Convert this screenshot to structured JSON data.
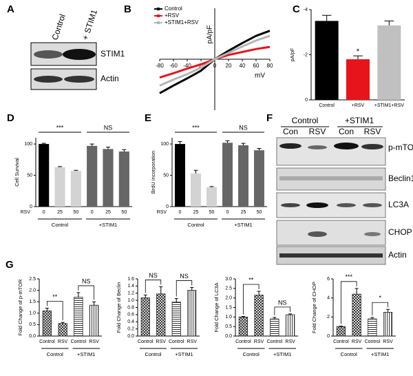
{
  "panels": [
    "A",
    "B",
    "C",
    "D",
    "E",
    "F",
    "G"
  ],
  "blots": [
    {
      "lanes": [
        "Control",
        "+ STIM1"
      ],
      "rows": [
        "STIM1",
        "Actin"
      ]
    },
    {
      "groups": [
        "Control",
        "+STIM1"
      ],
      "lanes": [
        "Con",
        "RSV",
        "Con",
        "RSV"
      ],
      "rows": [
        "p-mTOR",
        "Beclin1",
        "LC3A",
        "CHOP",
        "Actin"
      ]
    }
  ],
  "chart_data": [
    {
      "type": "line",
      "xlabel": "mV",
      "ylabel": "pA/pF",
      "x": [
        -80,
        -60,
        -40,
        -20,
        0,
        20,
        40,
        60,
        80
      ],
      "xlim": [
        -80,
        80
      ],
      "xticks": [
        -80,
        -60,
        -40,
        -20,
        0,
        20,
        40,
        60,
        80
      ],
      "ylim": [
        -1.2,
        1.2
      ],
      "legend": "upper left",
      "series": [
        {
          "name": "Control",
          "color": "#000000",
          "values": [
            -0.8,
            -0.62,
            -0.45,
            -0.27,
            0,
            0.2,
            0.38,
            0.55,
            0.67
          ]
        },
        {
          "name": "+RSV",
          "color": "#e8141b",
          "values": [
            -0.43,
            -0.33,
            -0.22,
            -0.12,
            0,
            0.1,
            0.17,
            0.24,
            0.29
          ]
        },
        {
          "name": "+STIM1+RSV",
          "color": "#b4b4b4",
          "values": [
            -0.62,
            -0.48,
            -0.35,
            -0.2,
            0,
            0.15,
            0.3,
            0.44,
            0.55
          ]
        }
      ]
    },
    {
      "type": "bar",
      "ylabel": "pA/pF",
      "categories": [
        "Control",
        "+RSV",
        "+STIM1+RSV"
      ],
      "values": [
        -3.5,
        -1.8,
        -3.3
      ],
      "errors": [
        0.25,
        0.15,
        0.2
      ],
      "colors": [
        "#000000",
        "#e8141b",
        "#c0c0c0"
      ],
      "ylim": [
        0,
        -4
      ],
      "yticks": [
        0,
        -2,
        -4
      ],
      "annotations": [
        "*"
      ]
    },
    {
      "type": "bar",
      "ylabel": "Cell Survival",
      "xlabel": "RSV",
      "categories": [
        "0",
        "25",
        "50",
        "0",
        "25",
        "50"
      ],
      "groups": [
        "Control",
        "+STIM1"
      ],
      "values": [
        100,
        63,
        57,
        97,
        92,
        88
      ],
      "errors": [
        1,
        1,
        1,
        3,
        3,
        3
      ],
      "colors": [
        "#000000",
        "#d3d3d3",
        "#d3d3d3",
        "#666666",
        "#666666",
        "#666666"
      ],
      "ylim": [
        0,
        110
      ],
      "yticks": [
        0,
        50,
        100
      ],
      "annotations": [
        "***",
        "NS"
      ]
    },
    {
      "type": "bar",
      "ylabel": "BrdU incorporation",
      "xlabel": "RSV",
      "categories": [
        "0",
        "25",
        "50",
        "0",
        "25",
        "50"
      ],
      "groups": [
        "Control",
        "+STIM1"
      ],
      "values": [
        100,
        53,
        31,
        102,
        98,
        90
      ],
      "errors": [
        4,
        5,
        1,
        3,
        3,
        3
      ],
      "colors": [
        "#000000",
        "#d3d3d3",
        "#d3d3d3",
        "#666666",
        "#666666",
        "#666666"
      ],
      "ylim": [
        0,
        110
      ],
      "yticks": [
        0,
        50,
        100
      ],
      "annotations": [
        "***",
        "NS"
      ]
    },
    {
      "type": "bar",
      "ylabel": "Fold Change of p-mTOR",
      "categories": [
        "Control",
        "RSV",
        "Control",
        "RSV"
      ],
      "groups": [
        "Control",
        "+STIM1"
      ],
      "values": [
        1.1,
        0.55,
        1.7,
        1.35
      ],
      "errors": [
        0.12,
        0.05,
        0.2,
        0.15
      ],
      "patterns": [
        "cross",
        "check",
        "hlines",
        "vlines"
      ],
      "ylim": [
        0,
        2.5
      ],
      "yticks": [
        {
          "value": 0,
          "label": "0.0"
        },
        0.5,
        {
          "value": 1,
          "label": "1.0"
        },
        1.5,
        {
          "value": 2,
          "label": "2.0"
        },
        2.5
      ],
      "annotations": [
        "**",
        "NS"
      ]
    },
    {
      "type": "bar",
      "ylabel": "Fold Change of Beclin",
      "categories": [
        "Control",
        "RSV",
        "Control",
        "RSV"
      ],
      "groups": [
        "Control",
        "+STIM1"
      ],
      "values": [
        1.07,
        1.18,
        0.95,
        1.28
      ],
      "errors": [
        0.08,
        0.2,
        0.1,
        0.08
      ],
      "patterns": [
        "cross",
        "check",
        "hlines",
        "vlines"
      ],
      "ylim": [
        0,
        1.6
      ],
      "yticks": [
        {
          "value": 0,
          "label": "0.0"
        },
        0.2,
        0.4,
        0.6,
        0.8,
        {
          "value": 1,
          "label": "1.0"
        },
        1.2,
        1.4,
        1.6
      ],
      "annotations": [
        "NS",
        "NS"
      ]
    },
    {
      "type": "bar",
      "ylabel": "Fold Change of LC3A",
      "categories": [
        "Control",
        "RSV",
        "Control",
        "RSV"
      ],
      "groups": [
        "Control",
        "+STIM1"
      ],
      "values": [
        1.0,
        2.15,
        0.9,
        1.12
      ],
      "errors": [
        0.03,
        0.2,
        0.08,
        0.04
      ],
      "patterns": [
        "cross",
        "check",
        "hlines",
        "vlines"
      ],
      "ylim": [
        0,
        3
      ],
      "yticks": [
        {
          "value": 0,
          "label": "0.0"
        },
        0.5,
        {
          "value": 1,
          "label": "1.0"
        },
        1.5,
        {
          "value": 2,
          "label": "2.0"
        },
        2.5,
        {
          "value": 3,
          "label": "3.0"
        }
      ],
      "annotations": [
        "**",
        "NS"
      ]
    },
    {
      "type": "bar",
      "ylabel": "Fold Change of CHOP",
      "categories": [
        "Control",
        "RSV",
        "Control",
        "RSV"
      ],
      "groups": [
        "Control",
        "+STIM1"
      ],
      "values": [
        1.0,
        4.4,
        1.8,
        2.5
      ],
      "errors": [
        0.05,
        0.6,
        0.15,
        0.3
      ],
      "patterns": [
        "cross",
        "check",
        "hlines",
        "vlines"
      ],
      "ylim": [
        0,
        6
      ],
      "yticks": [
        0,
        2,
        4,
        6
      ],
      "annotations": [
        "***",
        "*"
      ]
    }
  ]
}
